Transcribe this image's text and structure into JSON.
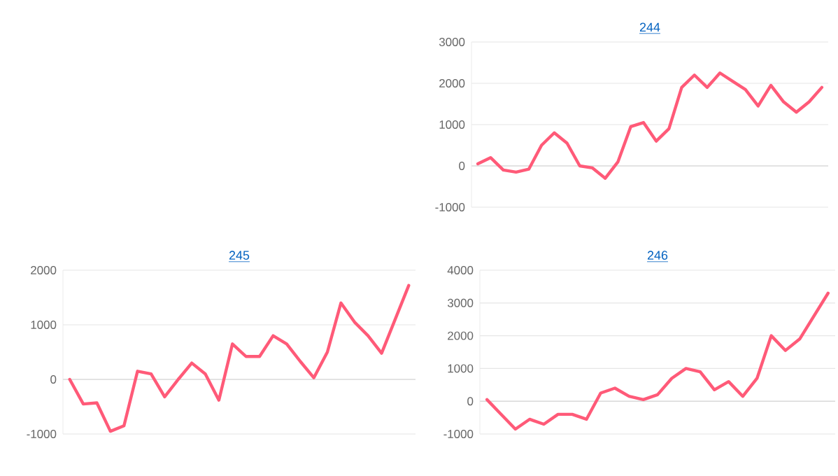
{
  "chart_data": [
    {
      "type": "line",
      "title": "244",
      "color": "#ff5a78",
      "grid": "y",
      "ylim": [
        -1000,
        3000
      ],
      "yticks": [
        -1000,
        0,
        1000,
        2000,
        3000
      ],
      "categories": [
        null,
        null,
        null,
        null,
        null,
        null,
        null,
        null,
        null,
        null,
        null,
        null,
        null,
        null,
        null,
        null,
        null,
        null,
        null,
        null,
        null,
        null,
        null,
        null,
        null,
        null,
        null,
        null
      ],
      "values": [
        50,
        200,
        -100,
        -150,
        -80,
        500,
        800,
        550,
        0,
        -50,
        -300,
        100,
        950,
        1050,
        600,
        900,
        1900,
        2200,
        1900,
        2250,
        2050,
        1850,
        1450,
        1950,
        1550,
        1300,
        1550,
        1900
      ]
    },
    {
      "type": "line",
      "title": "245",
      "color": "#ff5a78",
      "grid": "y",
      "ylim": [
        -1000,
        2000
      ],
      "yticks": [
        -1000,
        0,
        1000,
        2000
      ],
      "categories": [
        null,
        null,
        null,
        null,
        null,
        null,
        null,
        null,
        null,
        null,
        null,
        null,
        null,
        null,
        null,
        null,
        null,
        null,
        null,
        null,
        null,
        null,
        null,
        null,
        null,
        null
      ],
      "values": [
        0,
        -450,
        -430,
        -950,
        -850,
        150,
        100,
        -320,
        0,
        300,
        100,
        -380,
        650,
        420,
        420,
        800,
        650,
        330,
        30,
        500,
        1400,
        1050,
        800,
        480,
        1100,
        1720
      ]
    },
    {
      "type": "line",
      "title": "246",
      "color": "#ff5a78",
      "grid": "y",
      "ylim": [
        -1000,
        4000
      ],
      "yticks": [
        -1000,
        0,
        1000,
        2000,
        3000,
        4000
      ],
      "categories": [
        null,
        null,
        null,
        null,
        null,
        null,
        null,
        null,
        null,
        null,
        null,
        null,
        null,
        null,
        null,
        null,
        null,
        null,
        null,
        null,
        null,
        null,
        null,
        null,
        null
      ],
      "values": [
        50,
        -400,
        -850,
        -550,
        -700,
        -400,
        -400,
        -550,
        250,
        400,
        150,
        50,
        200,
        700,
        1000,
        900,
        350,
        600,
        150,
        700,
        2000,
        1550,
        1900,
        2600,
        3300
      ]
    }
  ]
}
